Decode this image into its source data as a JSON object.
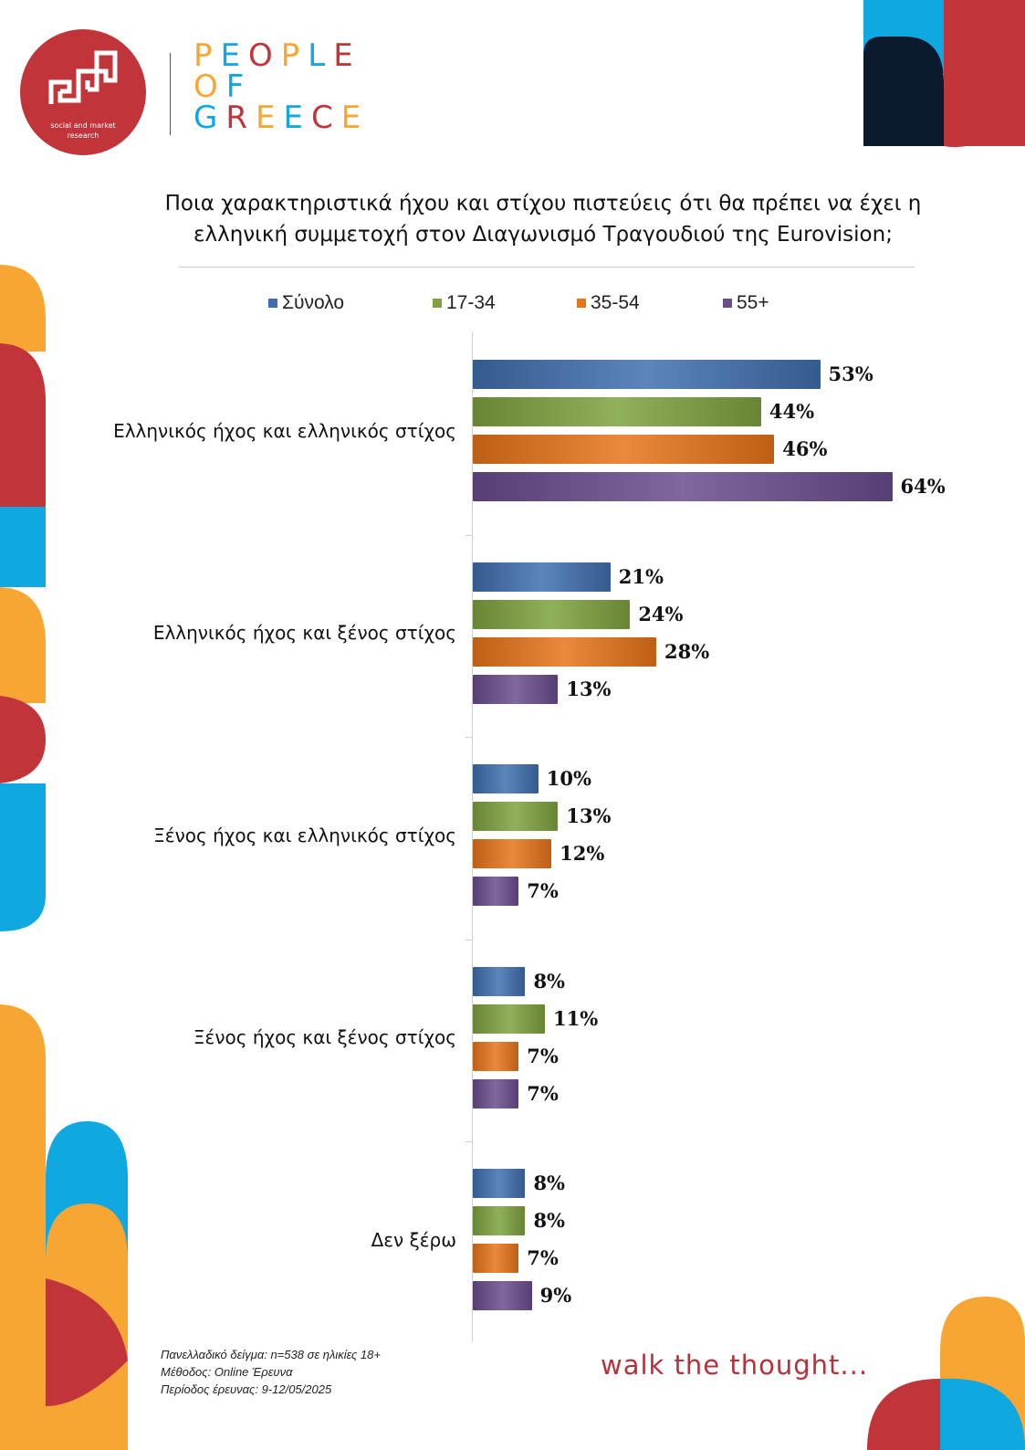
{
  "logo": {
    "subtitle_line1": "social and market",
    "subtitle_line2": "research"
  },
  "brand": {
    "line1": "PEOPLE",
    "line2": "OF",
    "line3": "GREECE"
  },
  "tagline": "walk the thought...",
  "footnotes": {
    "sample": "Πανελλαδικό δείγμα: n=538 σε ηλικίες 18+",
    "method": "Μέθοδος: Online Έρευνα",
    "period": "Περίοδος έρευνας: 9-12/05/2025"
  },
  "colors": {
    "blue": "#3f6fb0",
    "green": "#7ea23e",
    "orange": "#e6741a",
    "purple": "#6a4c8d",
    "brand_red": "#c0343a",
    "brand_orange": "#f7a634",
    "brand_blue": "#10a8e0",
    "brand_navy": "#0c1a2e"
  },
  "chart_data": {
    "type": "bar",
    "orientation": "horizontal",
    "title": "Ποια χαρακτηριστικά ήχου και στίχου πιστεύεις ότι θα πρέπει να έχει η ελληνική συμμετοχή στον Διαγωνισμό Τραγουδιού της Eurovision;",
    "title_line1": "Ποια χαρακτηριστικά ήχου και στίχου πιστεύεις ότι θα πρέπει να έχει η",
    "title_line2": "ελληνική συμμετοχή στον Διαγωνισμό Τραγουδιού της Eurovision;",
    "categories": [
      "Ελληνικός ήχος και ελληνικός στίχος",
      "Ελληνικός ήχος και ξένος στίχος",
      "Ξένος ήχος και ελληνικός στίχος",
      "Ξένος ήχος και ξένος στίχος",
      "Δεν ξέρω"
    ],
    "series": [
      {
        "name": "Σύνολο",
        "color": "#3f6fb0",
        "values": [
          53,
          21,
          10,
          8,
          8
        ]
      },
      {
        "name": "17-34",
        "color": "#7ea23e",
        "values": [
          44,
          24,
          13,
          11,
          8
        ]
      },
      {
        "name": "35-54",
        "color": "#e6741a",
        "values": [
          46,
          28,
          12,
          7,
          7
        ]
      },
      {
        "name": "55+",
        "color": "#6a4c8d",
        "values": [
          64,
          13,
          7,
          7,
          9
        ]
      }
    ],
    "value_suffix": "%",
    "legend_position": "top",
    "grid": false
  }
}
